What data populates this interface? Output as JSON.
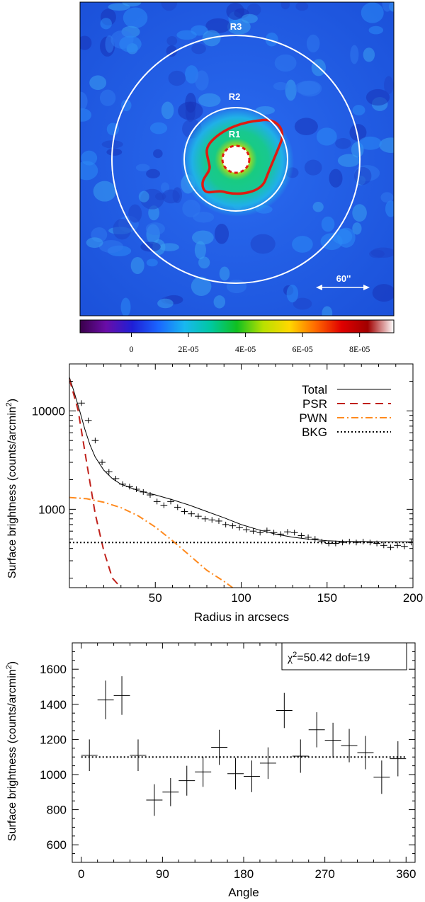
{
  "chart_data": [
    {
      "type": "heatmap",
      "rings": [
        "R3",
        "R2",
        "R1"
      ],
      "scale_label": "60''",
      "colorbar": {
        "ticks": [
          "0",
          "2E-05",
          "4E-05",
          "6E-05",
          "8E-05"
        ],
        "tick_values": [
          0,
          2e-05,
          4e-05,
          6e-05,
          8e-05
        ],
        "range": [
          -1.8e-05,
          9.2e-05
        ],
        "colors": [
          "#3a004a",
          "#6a0da8",
          "#1f1fd6",
          "#1a66ff",
          "#18b8f0",
          "#00c8a0",
          "#10c020",
          "#b8e000",
          "#ffd800",
          "#ff6a00",
          "#e00000",
          "#a00000",
          "#ffffff"
        ]
      }
    },
    {
      "type": "line",
      "xlabel": "Radius in arcsecs",
      "ylabel": "Surface brightness (counts/arcmin",
      "ylabel_sup": "2",
      "ylabel_close": ")",
      "xlim": [
        0,
        200
      ],
      "ylim": [
        160,
        30000
      ],
      "yscale": "log",
      "x_ticks": [
        "50",
        "100",
        "150",
        "200"
      ],
      "y_ticks": [
        "1000",
        "10000"
      ],
      "legend_position": "top-right",
      "series": [
        {
          "name": "Total",
          "color": "#000000",
          "style": "solid",
          "x": [
            0,
            3,
            6,
            9,
            12,
            15,
            20,
            25,
            30,
            40,
            50,
            60,
            70,
            80,
            90,
            100,
            110,
            120,
            130,
            140,
            150,
            160,
            170,
            180,
            190,
            200
          ],
          "y": [
            22000,
            15000,
            10000,
            6500,
            4500,
            3400,
            2500,
            2050,
            1800,
            1550,
            1400,
            1250,
            1100,
            950,
            820,
            700,
            620,
            560,
            520,
            495,
            480,
            472,
            470,
            468,
            468,
            468
          ]
        },
        {
          "name": "PSR",
          "color": "#c0201a",
          "style": "dashed",
          "x": [
            0,
            5,
            10,
            15,
            20,
            25,
            30
          ],
          "y": [
            21000,
            10300,
            3000,
            900,
            380,
            200,
            160
          ]
        },
        {
          "name": "PWN",
          "color": "#ff8a1e",
          "style": "dashdot",
          "x": [
            0,
            10,
            20,
            30,
            40,
            50,
            60,
            70,
            80,
            90,
            95
          ],
          "y": [
            1320,
            1280,
            1180,
            1040,
            860,
            660,
            480,
            340,
            240,
            185,
            160
          ]
        },
        {
          "name": "BKG",
          "color": "#000000",
          "style": "dotted",
          "x": [
            0,
            200
          ],
          "y": [
            460,
            460
          ]
        }
      ],
      "points": {
        "x": [
          7,
          11,
          15,
          19,
          23,
          27,
          31,
          35,
          39,
          43,
          47,
          51,
          55,
          59,
          63,
          67,
          71,
          75,
          79,
          83,
          87,
          91,
          95,
          99,
          103,
          107,
          111,
          115,
          119,
          123,
          127,
          131,
          135,
          139,
          143,
          147,
          151,
          155,
          159,
          163,
          167,
          171,
          175,
          179,
          183,
          187,
          191,
          195,
          199
        ],
        "y": [
          12000,
          8000,
          5000,
          3000,
          2400,
          2050,
          1800,
          1700,
          1600,
          1500,
          1400,
          1200,
          1100,
          1200,
          1050,
          950,
          900,
          850,
          800,
          780,
          760,
          700,
          680,
          650,
          620,
          600,
          580,
          610,
          580,
          560,
          590,
          580,
          540,
          520,
          500,
          470,
          450,
          450,
          460,
          470,
          460,
          470,
          460,
          450,
          430,
          410,
          430,
          420,
          460
        ],
        "xerr": 2
      }
    },
    {
      "type": "scatter",
      "xlabel": "Angle",
      "ylabel": "Surface brightness (counts/arcmin",
      "ylabel_sup": "2",
      "ylabel_close": ")",
      "xlim": [
        -10,
        370
      ],
      "ylim": [
        500,
        1750
      ],
      "x_ticks": [
        0,
        90,
        180,
        270,
        360
      ],
      "y_ticks": [
        600,
        800,
        1000,
        1200,
        1400,
        1600
      ],
      "fit_value": 1100,
      "annotation_chi_prefix": "χ",
      "annotation_chi_sup": "2",
      "annotation_chi_rest": "=50.42  dof=19",
      "x": [
        9,
        27,
        45,
        63,
        81,
        99,
        117,
        135,
        153,
        171,
        189,
        207,
        225,
        243,
        261,
        279,
        297,
        315,
        333,
        351
      ],
      "y": [
        1110,
        1425,
        1450,
        1110,
        855,
        900,
        965,
        1015,
        1155,
        1005,
        990,
        1065,
        1365,
        1105,
        1255,
        1195,
        1165,
        1125,
        985,
        1090
      ],
      "yerr": [
        90,
        110,
        110,
        90,
        90,
        80,
        85,
        85,
        100,
        90,
        90,
        90,
        100,
        95,
        100,
        100,
        95,
        95,
        95,
        100
      ],
      "xerr": 9
    }
  ]
}
